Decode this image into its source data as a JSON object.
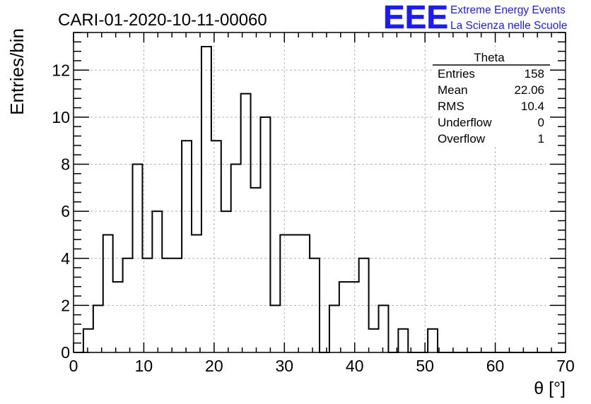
{
  "chart_data": {
    "type": "bar",
    "title": "CARI-01-2020-10-11-00060",
    "xlabel": "θ [°]",
    "ylabel": "Entries/bin",
    "xlim": [
      0,
      70
    ],
    "ylim": [
      0,
      13.6
    ],
    "grid": true,
    "bin_edges": [
      0,
      1.4,
      2.8,
      4.2,
      5.6,
      7,
      8.4,
      9.8,
      11.2,
      12.6,
      14,
      15.4,
      16.8,
      18.2,
      19.6,
      21,
      22.4,
      23.8,
      25.2,
      26.6,
      28,
      29.4,
      30.8,
      32.2,
      33.6,
      35,
      36.4,
      37.8,
      39.2,
      40.6,
      42,
      43.4,
      44.8,
      46.2,
      47.6,
      49,
      50.4,
      51.8,
      53.2,
      54.6,
      56,
      57.4,
      58.8,
      60.2,
      61.6,
      63,
      64.4,
      65.8,
      67.2,
      68.6,
      70
    ],
    "values": [
      0,
      1,
      2,
      5,
      3,
      4,
      8,
      4,
      6,
      4,
      4,
      9,
      5,
      13,
      9,
      6,
      8,
      11,
      7,
      10,
      2,
      5,
      5,
      5,
      4,
      0,
      2,
      3,
      3,
      4,
      1,
      2,
      0,
      1,
      0,
      0,
      1,
      0,
      0,
      0,
      0,
      0,
      0,
      0,
      0,
      0,
      0,
      0,
      0,
      0
    ],
    "x_ticks": [
      0,
      10,
      20,
      30,
      40,
      50,
      60,
      70
    ],
    "y_ticks": [
      0,
      2,
      4,
      6,
      8,
      10,
      12
    ],
    "stats_box": {
      "title": "Theta",
      "rows": [
        {
          "label": "Entries",
          "value": "158"
        },
        {
          "label": "Mean",
          "value": "22.06"
        },
        {
          "label": "RMS",
          "value": "10.4"
        },
        {
          "label": "Underflow",
          "value": "0"
        },
        {
          "label": "Overflow",
          "value": "1"
        }
      ]
    }
  },
  "logo": {
    "text": "EEE",
    "line1": "Extreme Energy Events",
    "line2": "La Scienza nelle Scuole",
    "color": "#1a1aff"
  },
  "colors": {
    "histogram": "#000000",
    "grid": "#b4b4b4"
  }
}
